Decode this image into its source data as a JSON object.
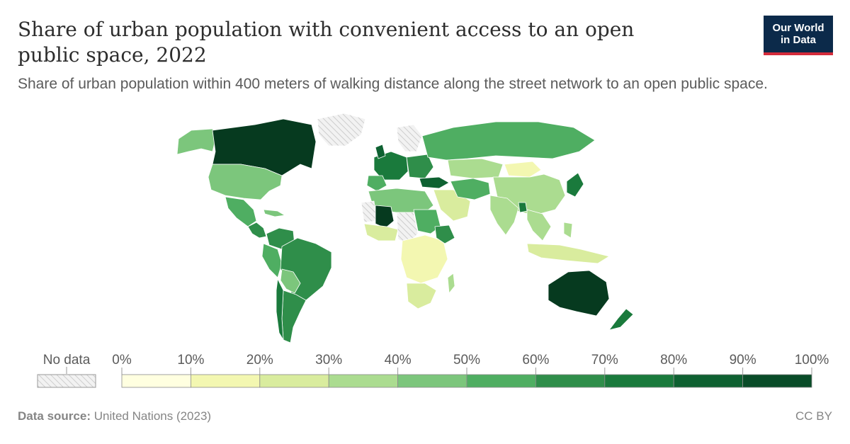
{
  "header": {
    "title": "Share of urban population with convenient access to an open public space, 2022",
    "subtitle": "Share of urban population within 400 meters of walking distance along the street network to an open public space."
  },
  "logo": {
    "line1": "Our World",
    "line2": "in Data"
  },
  "legend": {
    "no_data_label": "No data",
    "ticks": [
      "0%",
      "10%",
      "20%",
      "30%",
      "40%",
      "50%",
      "60%",
      "70%",
      "80%",
      "90%",
      "100%"
    ],
    "bin_colors": [
      "#ffffe0",
      "#f3f7b1",
      "#d9ec9e",
      "#abdc90",
      "#7cc67c",
      "#4fae62",
      "#2f8e4a",
      "#1a7a3c",
      "#0e6131",
      "#094c28",
      "#063a1f"
    ],
    "no_data_color": "#e6e6e6"
  },
  "footer": {
    "source_label": "Data source:",
    "source_value": "United Nations (2023)",
    "license": "CC BY"
  }
}
